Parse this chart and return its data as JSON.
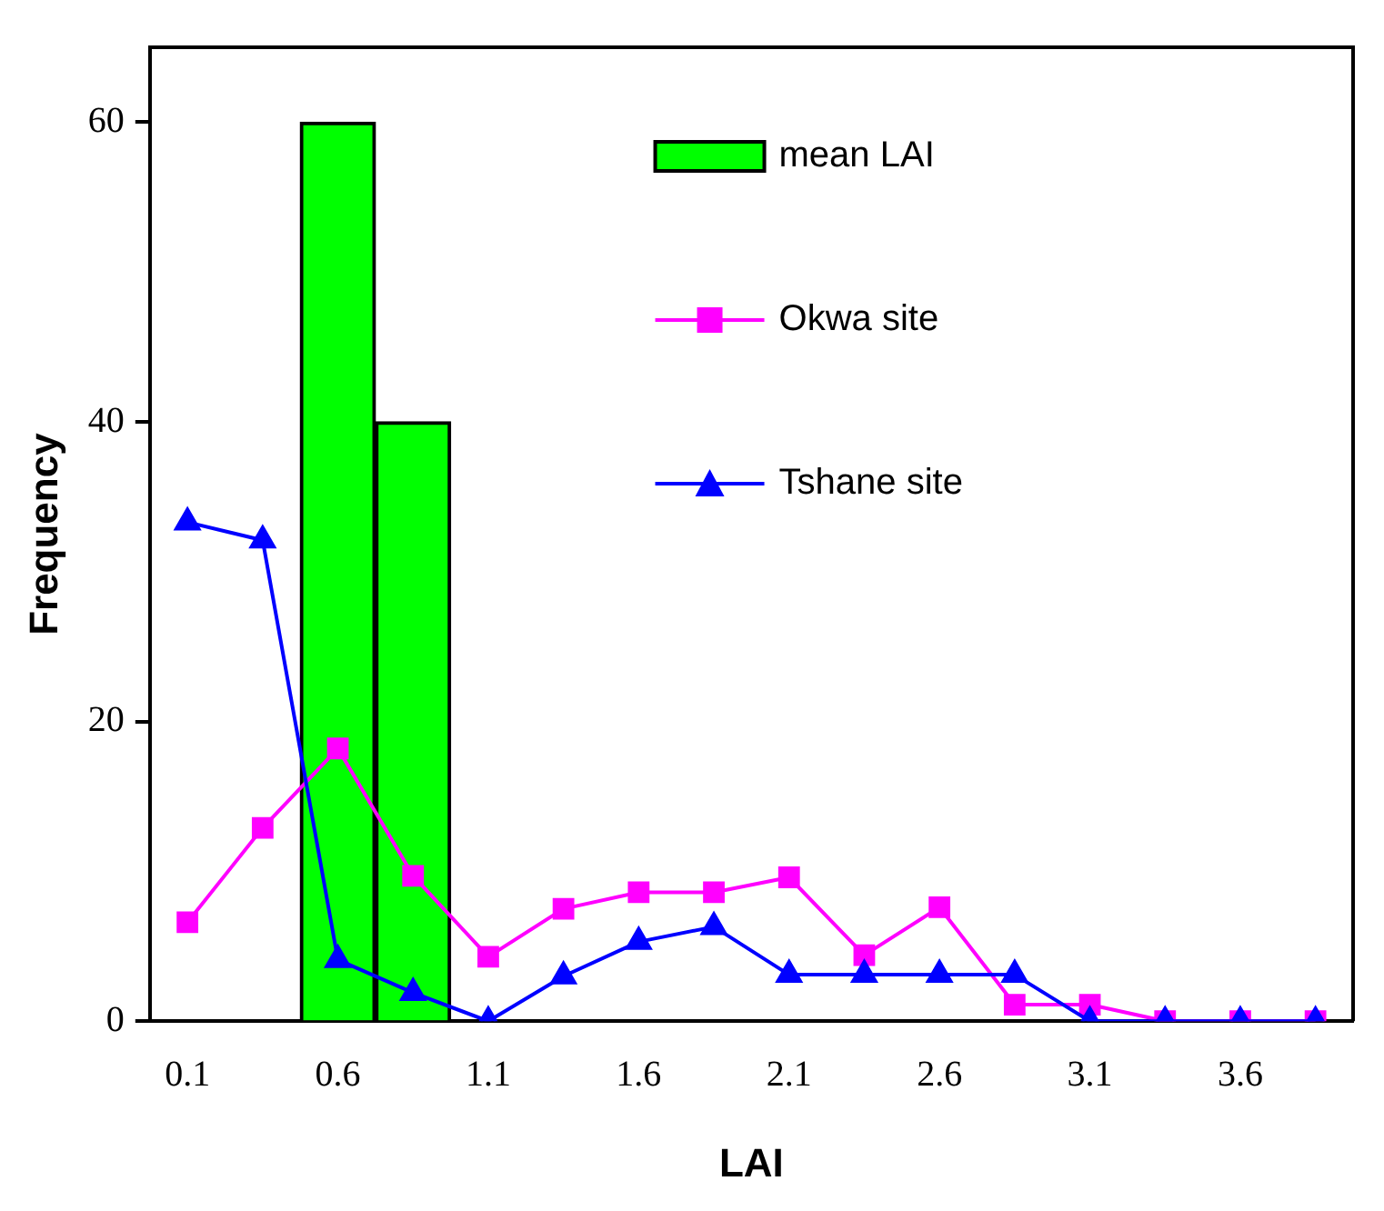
{
  "chart_data": {
    "type": "bar",
    "xlabel": "LAI",
    "ylabel": "Frequency",
    "categories": [
      "0.1",
      null,
      "0.6",
      null,
      "1.1",
      null,
      "1.6",
      null,
      "2.1",
      null,
      "2.6",
      null,
      "3.1",
      null,
      "3.6",
      null
    ],
    "series": [
      {
        "name": "mean LAI",
        "color": "#00ff00",
        "values": [
          null,
          null,
          60,
          40,
          null,
          null,
          null,
          null,
          null,
          null,
          null,
          null,
          null,
          null,
          null,
          null
        ]
      },
      {
        "name": "Okwa site",
        "type": "line",
        "color": "#ff00ff",
        "marker": "square",
        "values": [
          6.6,
          12.9,
          18.2,
          9.7,
          4.3,
          7.5,
          8.6,
          8.6,
          9.6,
          4.4,
          7.6,
          1.1,
          1.1,
          0,
          0,
          0
        ]
      },
      {
        "name": "Tshane site",
        "type": "line",
        "color": "#0000ff",
        "marker": "triangle",
        "values": [
          33.3,
          32.1,
          4.1,
          1.9,
          0,
          3,
          5.3,
          6.3,
          3.1,
          3.1,
          3.1,
          3.1,
          0,
          0,
          0,
          0
        ]
      }
    ],
    "ylim": [
      0,
      65
    ],
    "yticks": [
      0,
      20,
      40,
      60
    ],
    "grid": false,
    "legend": "top right"
  }
}
